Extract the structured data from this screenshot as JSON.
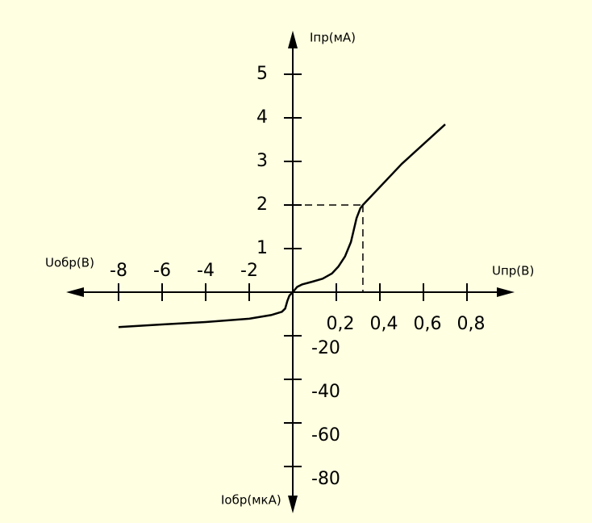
{
  "chart_data": {
    "type": "line",
    "color": "#000000",
    "y_forward_label": "Iпр(мА)",
    "x_forward_label": "Uпр(В)",
    "x_reverse_label": "Uобр(В)",
    "y_reverse_label": "Iобр(мкА)",
    "x_forward_lim": [
      0,
      1
    ],
    "x_reverse_lim": [
      -10,
      0
    ],
    "y_forward_lim": [
      0,
      5.8
    ],
    "y_reverse_lim": [
      -100,
      0
    ],
    "x_forward_ticks": [
      {
        "value": 0.2,
        "label": "0,2"
      },
      {
        "value": 0.4,
        "label": "0,4"
      },
      {
        "value": 0.6,
        "label": "0,6"
      },
      {
        "value": 0.8,
        "label": "0,8"
      }
    ],
    "x_reverse_ticks": [
      -8,
      -6,
      -4,
      -2
    ],
    "y_forward_ticks": [
      1,
      2,
      3,
      4,
      5
    ],
    "y_reverse_ticks": [
      -20,
      -40,
      -60,
      -80
    ],
    "forward": {
      "x": [
        0,
        0.02,
        0.044,
        0.09,
        0.137,
        0.18,
        0.21,
        0.24,
        0.267,
        0.293,
        0.31,
        0.322,
        0.5,
        0.7
      ],
      "y": [
        0,
        0.12,
        0.18,
        0.24,
        0.31,
        0.43,
        0.59,
        0.82,
        1.15,
        1.7,
        1.92,
        2,
        2.94,
        3.85
      ]
    },
    "reverse": {
      "x": [
        -8,
        -6,
        -4,
        -2,
        -1,
        -0.5,
        -0.35,
        -0.25,
        -0.15,
        0
      ],
      "y": [
        -16,
        -14.8,
        -13.7,
        -12.2,
        -10.5,
        -9,
        -7.5,
        -4,
        -1.5,
        0
      ]
    },
    "guide": {
      "x": 0.322,
      "y": 2
    }
  }
}
